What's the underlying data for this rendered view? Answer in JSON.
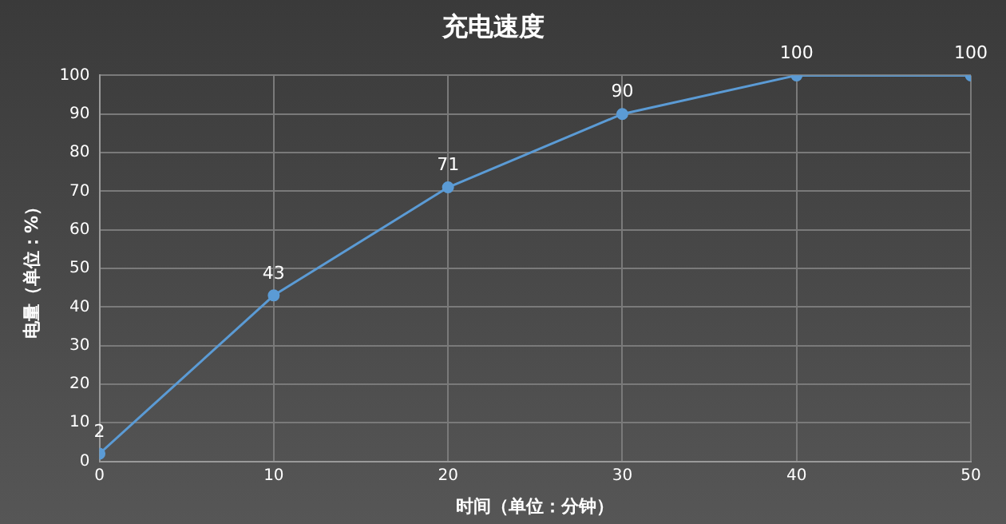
{
  "chart_data": {
    "type": "line",
    "title": "充电速度",
    "xlabel": "时间（单位：分钟）",
    "ylabel": "电量（单位：%）",
    "x": [
      0,
      10,
      20,
      30,
      40,
      50
    ],
    "series": [
      {
        "color": "#5b9bd5",
        "values": [
          2,
          43,
          71,
          90,
          100,
          100
        ]
      }
    ],
    "xlim": [
      0,
      50
    ],
    "xticks": [
      0,
      10,
      20,
      30,
      40,
      50
    ],
    "ylim": [
      0,
      100
    ],
    "yticks": [
      0,
      10,
      20,
      30,
      40,
      50,
      60,
      70,
      80,
      90,
      100
    ],
    "grid": true,
    "legend": false,
    "marker": "circle",
    "line_style": "solid",
    "data_labels": true
  }
}
